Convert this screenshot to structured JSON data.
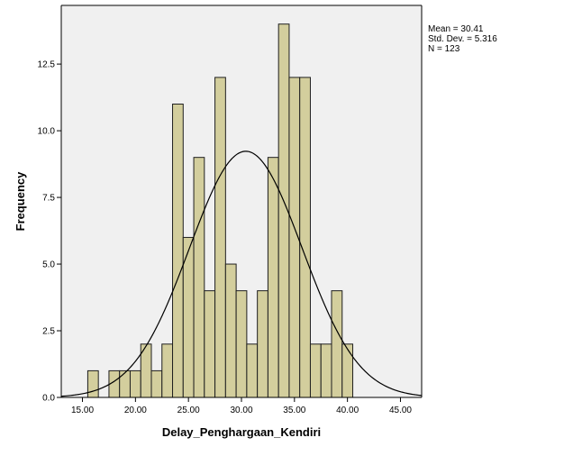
{
  "chart_data": {
    "type": "bar",
    "subtype": "histogram",
    "xlabel": "Delay_Penghargaan_Kendiri",
    "ylabel": "Frequency",
    "xlim": [
      13.0,
      47.0
    ],
    "ylim": [
      0,
      14.7
    ],
    "x_ticks": [
      15.0,
      20.0,
      25.0,
      30.0,
      35.0,
      40.0,
      45.0
    ],
    "x_tick_labels": [
      "15.00",
      "20.00",
      "25.00",
      "30.00",
      "35.00",
      "40.00",
      "45.00"
    ],
    "y_ticks": [
      0,
      2.5,
      5.0,
      7.5,
      10.0,
      12.5
    ],
    "y_tick_labels": [
      "0.0",
      "2.5",
      "5.0",
      "7.5",
      "10.0",
      "12.5"
    ],
    "bin_width": 1.0,
    "bins": [
      {
        "x": 16,
        "value": 1
      },
      {
        "x": 18,
        "value": 1
      },
      {
        "x": 19,
        "value": 1
      },
      {
        "x": 20,
        "value": 1
      },
      {
        "x": 21,
        "value": 2
      },
      {
        "x": 22,
        "value": 1
      },
      {
        "x": 23,
        "value": 2
      },
      {
        "x": 24,
        "value": 11
      },
      {
        "x": 25,
        "value": 6
      },
      {
        "x": 26,
        "value": 9
      },
      {
        "x": 27,
        "value": 4
      },
      {
        "x": 28,
        "value": 12
      },
      {
        "x": 29,
        "value": 5
      },
      {
        "x": 30,
        "value": 4
      },
      {
        "x": 31,
        "value": 2
      },
      {
        "x": 32,
        "value": 4
      },
      {
        "x": 33,
        "value": 9
      },
      {
        "x": 34,
        "value": 14
      },
      {
        "x": 35,
        "value": 12
      },
      {
        "x": 36,
        "value": 12
      },
      {
        "x": 37,
        "value": 2
      },
      {
        "x": 38,
        "value": 2
      },
      {
        "x": 39,
        "value": 4
      },
      {
        "x": 40,
        "value": 2
      }
    ],
    "normal_curve": {
      "mean": 30.41,
      "std_dev": 5.316,
      "n": 123
    },
    "stats": {
      "mean": "Mean = 30.41",
      "std_dev": "Std. Dev. = 5.316",
      "n": "N = 123"
    },
    "legend_position": "top-right, outside plot",
    "grid": false,
    "colors": {
      "plot_background": "#f0f0f0",
      "bar_fill": "#d3ce9d",
      "bar_stroke": "#1f1f1f",
      "curve": "#000000",
      "axis": "#000000"
    }
  }
}
